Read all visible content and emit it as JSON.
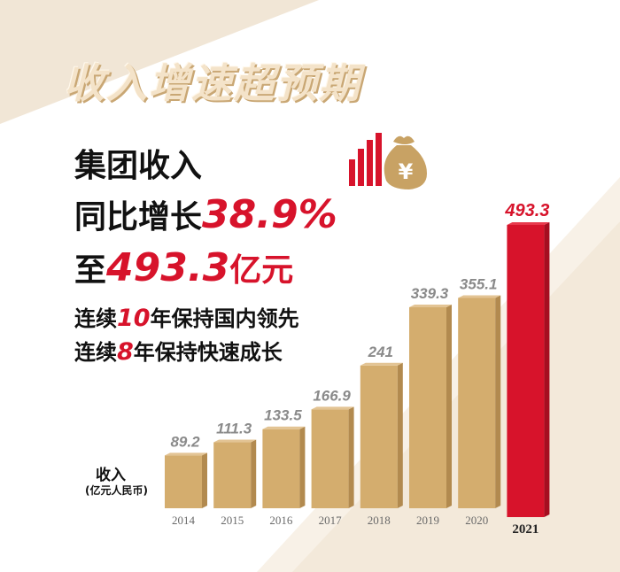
{
  "headline": "收入增速超预期",
  "summary": {
    "line1": "集团收入",
    "line2_prefix": "同比增长",
    "line2_value": "38.9%",
    "line3_prefix": "至",
    "line3_value": "493.3",
    "line3_unit": "亿元",
    "line4_a": "连续",
    "line4_num": "10",
    "line4_b": "年保持国内领先",
    "line5_a": "连续",
    "line5_num": "8",
    "line5_b": "年保持快速成长"
  },
  "icons": [
    "bar-chart-icon",
    "money-bag-yen-icon"
  ],
  "colors": {
    "bar_gold": "#d4ad6e",
    "bar_red": "#d7132b",
    "value_gray": "#8a8a8a",
    "background_beige": "#f3e9da"
  },
  "chart_data": {
    "type": "bar",
    "ylabel": "收入",
    "yunit": "(亿元人民币)",
    "categories": [
      "2014",
      "2015",
      "2016",
      "2017",
      "2018",
      "2019",
      "2020",
      "2021"
    ],
    "values": [
      89.2,
      111.3,
      133.5,
      166.9,
      241,
      339.3,
      355.1,
      493.3
    ],
    "value_labels": [
      "89.2",
      "111.3",
      "133.5",
      "166.9",
      "241",
      "339.3",
      "355.1",
      "493.3"
    ],
    "highlight": "2021",
    "ylim": [
      0,
      493.3
    ],
    "grid": false,
    "legend": "none"
  }
}
